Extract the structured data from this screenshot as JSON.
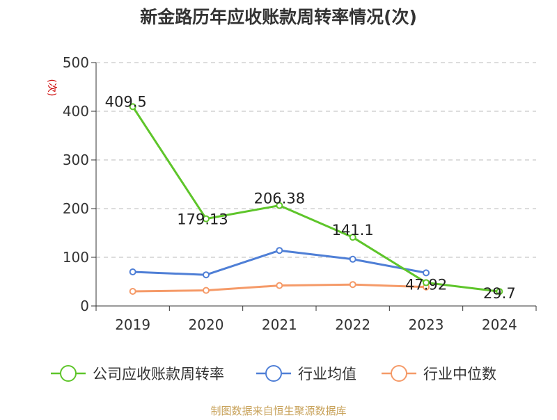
{
  "chart_data": {
    "type": "line",
    "title": "新金路历年应收账款周转率情况(次)",
    "ylabel": "(次)",
    "xlabel": "",
    "categories": [
      "2019",
      "2020",
      "2021",
      "2022",
      "2023",
      "2024"
    ],
    "ylim": [
      0,
      500
    ],
    "yticks": [
      0,
      100,
      200,
      300,
      400,
      500
    ],
    "grid": true,
    "legend_position": "bottom",
    "series": [
      {
        "name": "公司应收账款周转率",
        "color": "#5ec52a",
        "values": [
          409.5,
          179.13,
          206.38,
          141.1,
          47.92,
          29.7
        ],
        "labels": [
          "409.5",
          "179.13",
          "206.38",
          "141.1",
          "47.92",
          "29.7"
        ],
        "show_labels": true
      },
      {
        "name": "行业均值",
        "color": "#4f7fd6",
        "values": [
          70,
          64,
          114,
          96,
          68,
          null
        ],
        "show_labels": false
      },
      {
        "name": "行业中位数",
        "color": "#f59a68",
        "values": [
          30,
          32,
          42,
          44,
          39,
          null
        ],
        "show_labels": false
      }
    ]
  },
  "source": "制图数据来自恒生聚源数据库",
  "colors": {
    "title": "#333333",
    "axis": "#333333",
    "grid": "#bbbbbb",
    "ylabel": "#cc0000",
    "source": "#c8a25a"
  }
}
